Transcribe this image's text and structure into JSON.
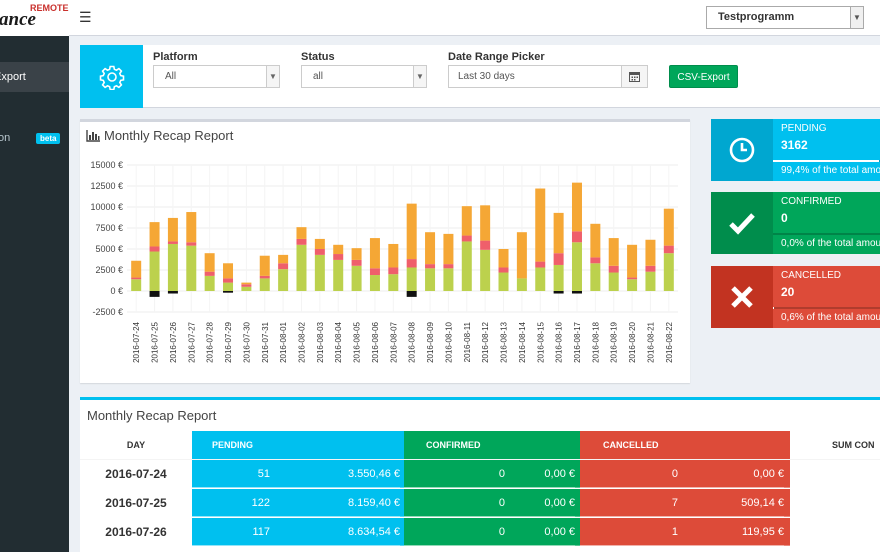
{
  "app": {
    "logo_text": "ance",
    "logo_remote": "REMOTE"
  },
  "sidebar": {
    "items": [
      {
        "label": "Export",
        "active": true
      },
      {
        "label": "on",
        "badge": "beta"
      }
    ]
  },
  "topbar": {
    "menu_icon": "hamburger-icon",
    "program_select": "Testprogramm"
  },
  "filters": {
    "settings_icon": "gear-icon",
    "platform": {
      "label": "Platform",
      "value": "All"
    },
    "status": {
      "label": "Status",
      "value": "all"
    },
    "date_range": {
      "label": "Date Range Picker",
      "value": "Last 30 days"
    },
    "export_label": "CSV-Export"
  },
  "chart_title": "Monthly Recap Report",
  "chart_data": {
    "type": "bar",
    "stacked": true,
    "title": "Monthly Recap Report",
    "ylim": [
      -2500,
      15000
    ],
    "yticks": [
      "15000 €",
      "12500 €",
      "10000 €",
      "7500 €",
      "5000 €",
      "2500 €",
      "0 €",
      "-2500 €"
    ],
    "categories": [
      "2016-07-24",
      "2016-07-25",
      "2016-07-26",
      "2016-07-27",
      "2016-07-28",
      "2016-07-29",
      "2016-07-30",
      "2016-07-31",
      "2016-08-01",
      "2016-08-02",
      "2016-08-03",
      "2016-08-04",
      "2016-08-05",
      "2016-08-06",
      "2016-08-07",
      "2016-08-08",
      "2016-08-09",
      "2016-08-10",
      "2016-08-11",
      "2016-08-12",
      "2016-08-13",
      "2016-08-14",
      "2016-08-15",
      "2016-08-16",
      "2016-08-17",
      "2016-08-18",
      "2016-08-19",
      "2016-08-20",
      "2016-08-21",
      "2016-08-22"
    ],
    "series": [
      {
        "color": "#bcd14d",
        "values": [
          1400,
          4700,
          5600,
          5400,
          1800,
          1000,
          500,
          1500,
          2600,
          5500,
          4300,
          3700,
          3000,
          1900,
          2000,
          2800,
          2700,
          2700,
          5900,
          4900,
          2200,
          1500,
          2800,
          3100,
          5800,
          3300,
          2200,
          1400,
          2300,
          4500
        ]
      },
      {
        "color": "#ef5f6b",
        "values": [
          200,
          600,
          300,
          400,
          500,
          500,
          300,
          300,
          700,
          700,
          700,
          700,
          700,
          800,
          800,
          1000,
          500,
          500,
          700,
          1100,
          600,
          0,
          700,
          1400,
          1300,
          700,
          800,
          200,
          700,
          900
        ]
      },
      {
        "color": "#f5a735",
        "values": [
          2000,
          2900,
          2800,
          3600,
          2200,
          1800,
          200,
          2400,
          1000,
          1400,
          1200,
          1100,
          1400,
          3600,
          2800,
          6600,
          3800,
          3600,
          3500,
          4200,
          2200,
          5500,
          8700,
          4800,
          5800,
          4000,
          3300,
          3900,
          3100,
          4400
        ]
      },
      {
        "color": "#111111",
        "values": [
          0,
          -700,
          -300,
          0,
          0,
          -200,
          0,
          0,
          0,
          0,
          0,
          0,
          0,
          0,
          0,
          -700,
          0,
          0,
          0,
          0,
          0,
          0,
          0,
          -300,
          -300,
          0,
          0,
          0,
          0,
          0
        ]
      }
    ]
  },
  "cards": [
    {
      "label": "PENDING",
      "value": "3162",
      "sub": "99,4% of the total amou",
      "progress": 0.994,
      "color": "#00c0ef",
      "dark": "#00a7d0",
      "icon": "clock-icon"
    },
    {
      "label": "CONFIRMED",
      "value": "0",
      "sub": "0,0% of the total amou",
      "progress": 0.0,
      "color": "#00a65a",
      "dark": "#008d4c",
      "icon": "check-icon"
    },
    {
      "label": "CANCELLED",
      "value": "20",
      "sub": "0,6% of the total amou",
      "progress": 0.006,
      "color": "#dd4b39",
      "dark": "#c23321",
      "icon": "cross-icon"
    }
  ],
  "table": {
    "title": "Monthly Recap Report",
    "headers": {
      "day": "DAY",
      "pending": "PENDING",
      "confirmed": "CONFIRMED",
      "cancelled": "CANCELLED",
      "sum": "SUM CON"
    },
    "rows": [
      {
        "day": "2016-07-24",
        "p_count": "51",
        "p_amount": "3.550,46 €",
        "c_count": "0",
        "c_amount": "0,00 €",
        "x_count": "0",
        "x_amount": "0,00 €"
      },
      {
        "day": "2016-07-25",
        "p_count": "122",
        "p_amount": "8.159,40 €",
        "c_count": "0",
        "c_amount": "0,00 €",
        "x_count": "7",
        "x_amount": "509,14 €"
      },
      {
        "day": "2016-07-26",
        "p_count": "117",
        "p_amount": "8.634,54 €",
        "c_count": "0",
        "c_amount": "0,00 €",
        "x_count": "1",
        "x_amount": "119,95 €"
      }
    ]
  }
}
